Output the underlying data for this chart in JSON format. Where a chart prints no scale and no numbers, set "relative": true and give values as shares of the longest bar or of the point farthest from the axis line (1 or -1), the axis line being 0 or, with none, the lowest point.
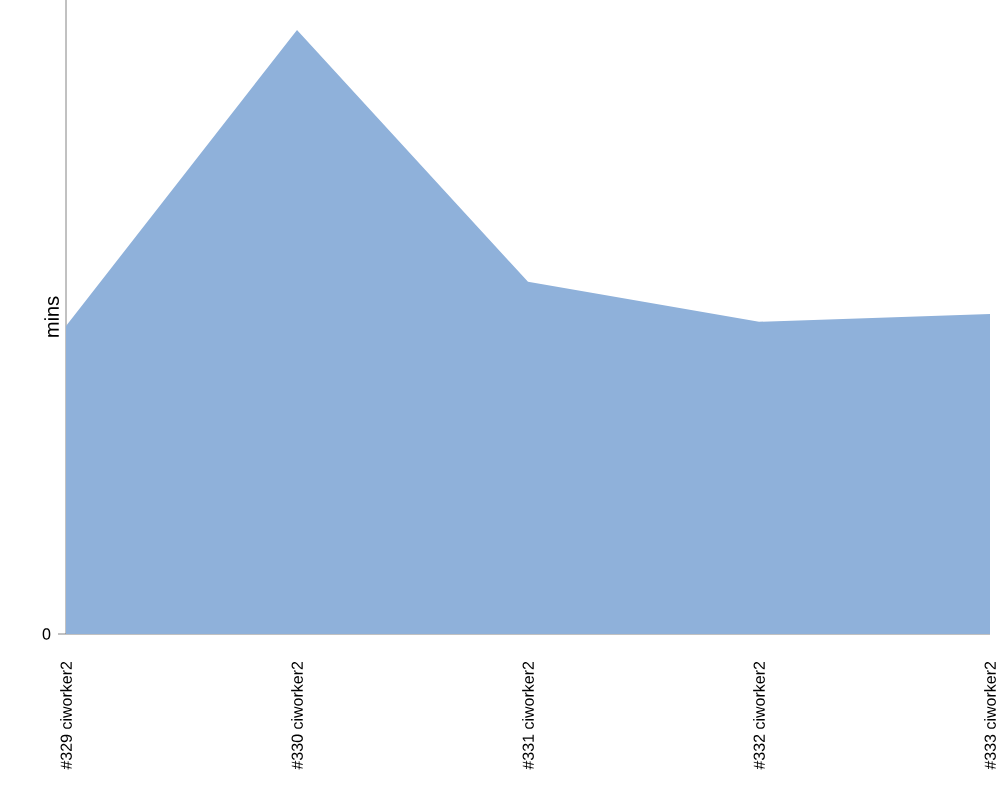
{
  "chart_data": {
    "type": "area",
    "ylabel": "mins",
    "relative": true,
    "annotations": [
      "0"
    ],
    "categories": [
      "#329 ciworker2",
      "#330 ciworker2",
      "#331 ciworker2",
      "#332 ciworker2",
      "#333 ciworker2"
    ],
    "series": [
      {
        "color": "#8fb1da",
        "values": [
          0.51,
          1,
          0.583,
          0.517,
          0.53
        ]
      }
    ]
  }
}
